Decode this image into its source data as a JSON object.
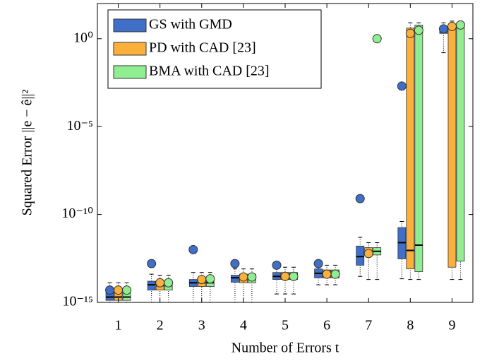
{
  "chart_data": {
    "type": "box",
    "x_label": "Number of Errors t",
    "y_label": "Squared Error ||e − ê||²",
    "x": [
      1,
      2,
      3,
      4,
      5,
      6,
      7,
      8,
      9
    ],
    "xlim": [
      0.5,
      9.5
    ],
    "xticks": [
      1,
      2,
      3,
      4,
      5,
      6,
      7,
      8,
      9
    ],
    "ylim": [
      1e-15,
      100
    ],
    "log_y": true,
    "yticks": [
      {
        "value": 1e-15,
        "label": "10⁻¹⁵"
      },
      {
        "value": 1e-10,
        "label": "10⁻¹⁰"
      },
      {
        "value": 1e-05,
        "label": "10⁻⁵"
      },
      {
        "value": 1,
        "label": "10⁰"
      }
    ],
    "legend": "top-left",
    "series": [
      {
        "name": "GS with GMD",
        "color": "#3f6fc9",
        "mean": [
          5e-15,
          1.6e-13,
          1e-12,
          1.6e-13,
          1.3e-13,
          1.6e-13,
          8e-10,
          0.002,
          3.6
        ],
        "q1": [
          1.3e-15,
          5e-15,
          8e-15,
          1.4e-14,
          2e-14,
          2.5e-14,
          1.3e-13,
          3e-13,
          2
        ],
        "median": [
          2e-15,
          1e-14,
          1.3e-14,
          2.5e-14,
          3e-14,
          4.5e-14,
          4e-13,
          2.5e-12,
          3
        ],
        "q3": [
          4e-15,
          1.6e-14,
          2e-14,
          3.5e-14,
          5e-14,
          8e-14,
          1.6e-12,
          1.8e-11,
          4.5
        ],
        "whisker_low": [
          1e-15,
          1e-15,
          1e-15,
          1e-15,
          3e-15,
          1e-14,
          3e-14,
          2.2e-14,
          0.16
        ],
        "whisker_high": [
          1.3e-14,
          4e-14,
          5e-14,
          8e-14,
          1e-13,
          1.6e-13,
          5e-12,
          4e-11,
          8
        ]
      },
      {
        "name": "PD with CAD [23]",
        "color": "#fbb03b",
        "mean": [
          5e-15,
          1.3e-14,
          2e-14,
          2.8e-14,
          3e-14,
          4e-14,
          6e-13,
          2,
          5
        ],
        "q1": [
          1.3e-15,
          5e-15,
          8e-15,
          1.3e-14,
          2e-14,
          2.5e-14,
          5e-13,
          8e-14,
          1e-13
        ],
        "median": [
          2e-15,
          9e-15,
          1.3e-14,
          2.5e-14,
          3e-14,
          4.5e-14,
          7e-13,
          9e-13,
          5
        ],
        "q3": [
          4e-15,
          1.6e-14,
          2.5e-14,
          4e-14,
          5e-14,
          7e-14,
          1.3e-12,
          4,
          6
        ],
        "whisker_low": [
          1e-15,
          1e-15,
          1e-15,
          1e-15,
          3e-15,
          1e-14,
          2e-14,
          2e-14,
          2e-14
        ],
        "whisker_high": [
          1.3e-14,
          3.5e-14,
          5e-14,
          8e-14,
          1e-13,
          1.3e-13,
          2.5e-12,
          8,
          10
        ]
      },
      {
        "name": "BMA with CAD [23]",
        "color": "#90ee90",
        "mean": [
          5e-15,
          1.3e-14,
          2.2e-14,
          2.8e-14,
          3e-14,
          4e-14,
          1,
          3,
          6
        ],
        "q1": [
          1.3e-15,
          5e-15,
          8e-15,
          1.3e-14,
          2e-14,
          2.5e-14,
          5e-13,
          5.6e-14,
          2.2e-13
        ],
        "median": [
          2e-15,
          9e-15,
          1.3e-14,
          2.5e-14,
          3e-14,
          4.5e-14,
          8e-13,
          1.8e-12,
          6
        ],
        "q3": [
          4e-15,
          1.6e-14,
          2.5e-14,
          4e-14,
          5e-14,
          7e-14,
          1.3e-12,
          6,
          8
        ],
        "whisker_low": [
          1e-15,
          1e-15,
          1e-15,
          1e-15,
          3e-15,
          1e-14,
          2e-14,
          2e-14,
          2e-14
        ],
        "whisker_high": [
          1.3e-14,
          3.5e-14,
          5e-14,
          8e-14,
          1e-13,
          1.3e-13,
          2.5e-12,
          8,
          10
        ]
      }
    ]
  }
}
